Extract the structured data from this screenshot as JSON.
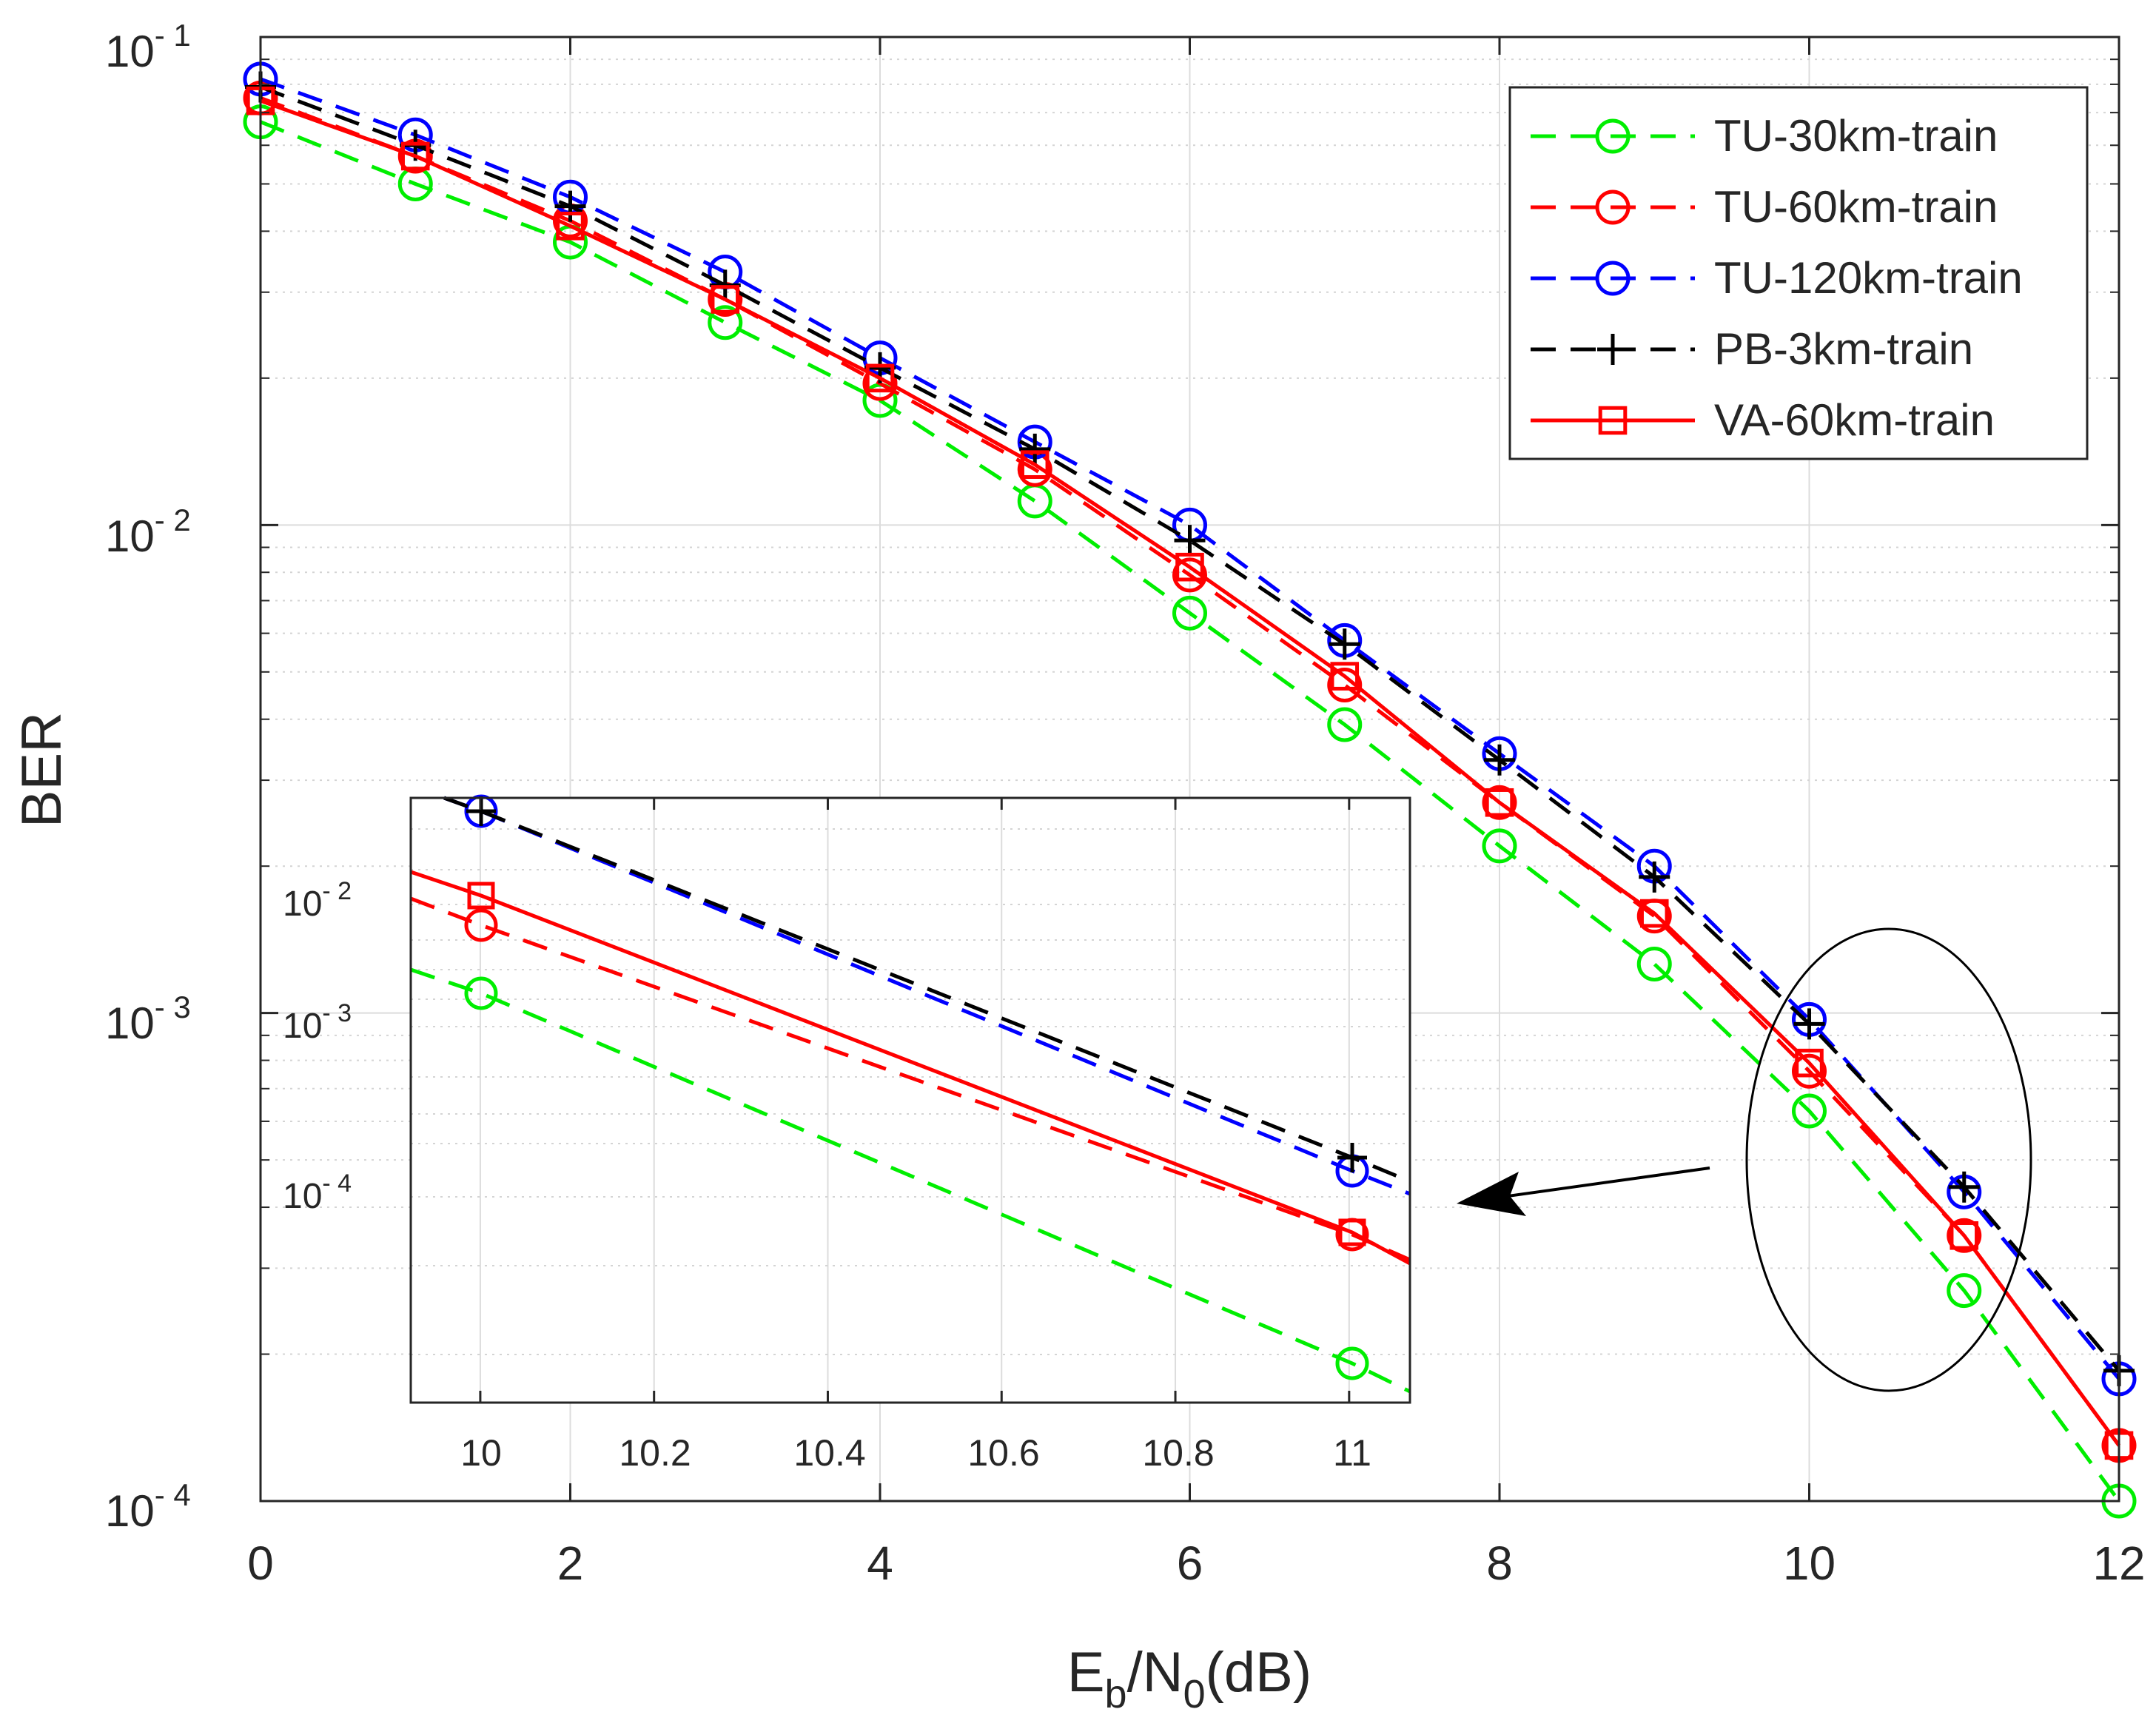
{
  "chart_data": {
    "type": "line",
    "yscale": "log",
    "xlabel": {
      "main": "E",
      "sub1": "b",
      "mid": "/N",
      "sub2": "0",
      "tail": "(dB)"
    },
    "ylabel": "BER",
    "xlim": [
      0,
      12
    ],
    "ylim": [
      0.0001,
      0.1
    ],
    "grid": true,
    "legend_position": "top-right",
    "x_ticks": [
      0,
      2,
      4,
      6,
      8,
      10,
      12
    ],
    "x_tick_labels": [
      "0",
      "2",
      "4",
      "6",
      "8",
      "10",
      "12"
    ],
    "y_ticks": [
      {
        "value": 0.1,
        "base": "10",
        "exp": "- 1"
      },
      {
        "value": 0.01,
        "base": "10",
        "exp": "- 2"
      },
      {
        "value": 0.001,
        "base": "10",
        "exp": "- 3"
      },
      {
        "value": 0.0001,
        "base": "10",
        "exp": "- 4"
      }
    ],
    "x": [
      0,
      1,
      2,
      3,
      4,
      5,
      6,
      7,
      8,
      9,
      10,
      11,
      12
    ],
    "series": [
      {
        "name": "TU-30km-train",
        "color": "#00ee00",
        "dash": "dashed",
        "marker": "circle",
        "values": [
          0.067,
          0.05,
          0.038,
          0.026,
          0.018,
          0.0112,
          0.0066,
          0.0039,
          0.0022,
          0.00126,
          0.00063,
          0.00027,
          0.0001
        ]
      },
      {
        "name": "TU-60km-train",
        "color": "#ff0000",
        "dash": "dashed",
        "marker": "circle",
        "values": [
          0.075,
          0.057,
          0.042,
          0.029,
          0.0195,
          0.013,
          0.0079,
          0.0047,
          0.0027,
          0.00158,
          0.00076,
          0.00035,
          0.00013
        ]
      },
      {
        "name": "TU-120km-train",
        "color": "#0000ff",
        "dash": "dashed",
        "marker": "circle",
        "values": [
          0.082,
          0.063,
          0.047,
          0.033,
          0.022,
          0.0148,
          0.01,
          0.0058,
          0.0034,
          0.002,
          0.00097,
          0.00043,
          0.000178
        ]
      },
      {
        "name": "PB-3km-train",
        "color": "#000000",
        "dash": "dashed",
        "marker": "plus",
        "values": [
          0.079,
          0.06,
          0.045,
          0.031,
          0.021,
          0.0143,
          0.0093,
          0.0057,
          0.0033,
          0.0019,
          0.00095,
          0.00044,
          0.000185
        ]
      },
      {
        "name": "VA-60km-train",
        "color": "#ff0000",
        "dash": "solid",
        "marker": "square",
        "values": [
          0.074,
          0.057,
          0.041,
          0.029,
          0.02,
          0.0133,
          0.0082,
          0.0049,
          0.0027,
          0.0016,
          0.00079,
          0.00035,
          0.00013
        ]
      }
    ],
    "inset": {
      "xlim": [
        9.92,
        11.07
      ],
      "x_ticks": [
        10,
        10.2,
        10.4,
        10.6,
        10.8,
        11
      ],
      "x_tick_labels": [
        "10",
        "10.2",
        "10.4",
        "10.6",
        "10.8",
        "11"
      ],
      "y_ticks": [
        {
          "base": "10",
          "exp": "- 2"
        },
        {
          "base": "10",
          "exp": "- 3"
        },
        {
          "base": "10",
          "exp": "- 4"
        }
      ]
    }
  }
}
